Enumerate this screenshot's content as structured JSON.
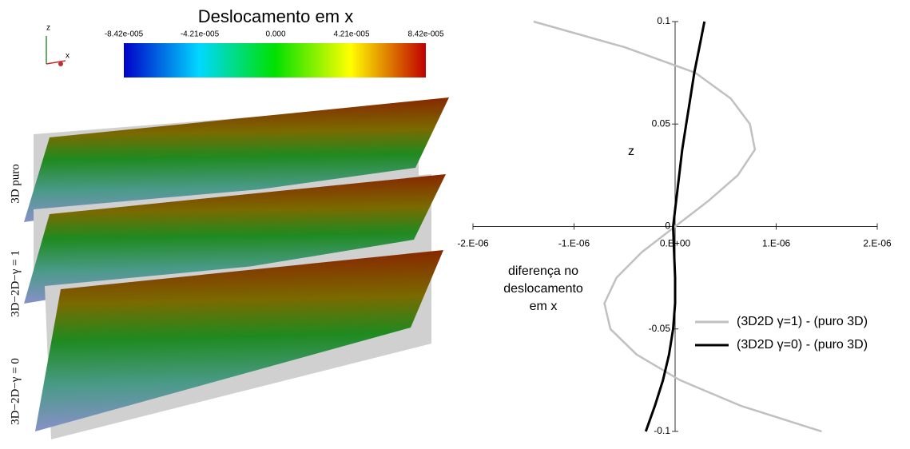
{
  "colorbar": {
    "title": "Deslocamento em x",
    "labels": [
      "-8.42e-005",
      "-4.21e-005",
      "0.000",
      "4.21e-005",
      "8.42e-005"
    ]
  },
  "triad": {
    "z": "z",
    "x": "x"
  },
  "renders": {
    "labels": [
      "3D puro",
      "3D−2D−γ = 1",
      "3D−2D−γ = 0"
    ]
  },
  "chart_data": {
    "type": "line",
    "ylabel": "z",
    "xlabel": [
      "diferença no",
      "deslocamento",
      "em x"
    ],
    "xlim": [
      -2e-06,
      2e-06
    ],
    "xticks": [
      {
        "value": -2e-06,
        "label": "-2.E-06"
      },
      {
        "value": -1e-06,
        "label": "-1.E-06"
      },
      {
        "value": 0,
        "label": "0.E+00"
      },
      {
        "value": 1e-06,
        "label": "1.E-06"
      },
      {
        "value": 2e-06,
        "label": "2.E-06"
      }
    ],
    "ylim": [
      -0.1,
      0.1
    ],
    "yticks": [
      -0.1,
      -0.05,
      0,
      0.05,
      0.1
    ],
    "legend": "lower-right",
    "series": [
      {
        "name": "(3D2D γ=1) - (puro 3D)",
        "color": "#c0c0c0",
        "x": [
          -1.4e-06,
          -5e-07,
          2e-07,
          5.5e-07,
          7.4e-07,
          7.9e-07,
          6.2e-07,
          3.3e-07,
          0.0,
          -3.3e-07,
          -5.8e-07,
          -7e-07,
          -6.4e-07,
          -3.8e-07,
          5e-08,
          6.5e-07,
          1.45e-06
        ],
        "values": [
          0.1,
          0.0875,
          0.075,
          0.0625,
          0.05,
          0.0375,
          0.025,
          0.0125,
          0,
          -0.0125,
          -0.025,
          -0.0375,
          -0.05,
          -0.0625,
          -0.075,
          -0.0875,
          -0.1
        ]
      },
      {
        "name": "(3D2D γ=0) - (puro 3D)",
        "color": "#000000",
        "x": [
          2.9e-07,
          2.4e-07,
          1.9e-07,
          1.5e-07,
          1.1e-07,
          7e-08,
          4e-08,
          1e-08,
          -2e-08,
          -1e-08,
          0.0,
          0.0,
          -2e-08,
          -6e-08,
          -1.2e-07,
          -2e-07,
          -2.9e-07
        ],
        "values": [
          0.1,
          0.0875,
          0.075,
          0.0625,
          0.05,
          0.0375,
          0.025,
          0.0125,
          0,
          -0.0125,
          -0.025,
          -0.0375,
          -0.05,
          -0.0625,
          -0.075,
          -0.0875,
          -0.1
        ]
      }
    ]
  }
}
